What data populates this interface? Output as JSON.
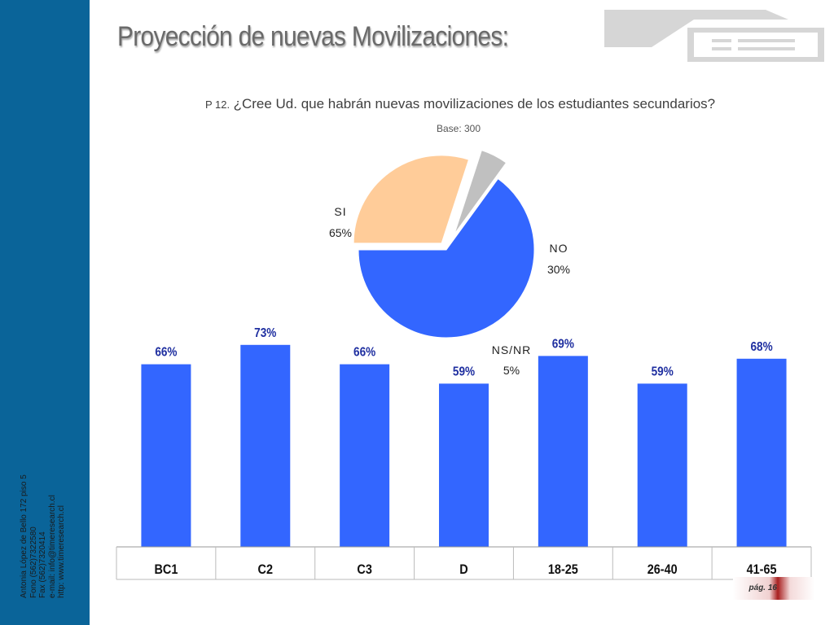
{
  "header": {
    "title": "Proyección de nuevas Movilizaciones:",
    "question_number": "P 12.",
    "question_text": "¿Cree Ud. que habrán nuevas movilizaciones de los estudiantes secundarios?",
    "base": "Base: 300"
  },
  "sidebar": {
    "contact_lines": [
      "Antonia López de Bello 172 piso 5",
      "Fono (562)7322580",
      "Fax (562)7320414",
      "e-mail: info@timeresearch.cl",
      "http: www.timeresearch.cl"
    ]
  },
  "footer": {
    "page": "pág. 16"
  },
  "colors": {
    "sidebar": "#0a6499",
    "bar": "#3366ff",
    "bar_label": "#1f2fa0",
    "pie_si": "#3366ff",
    "pie_no": "#ffcc99",
    "pie_nsnr": "#c0c0c0"
  },
  "chart_data": [
    {
      "type": "pie",
      "labels": [
        "SI",
        "NO",
        "NS/NR"
      ],
      "values": [
        65,
        30,
        5
      ],
      "value_labels": [
        "65%",
        "30%",
        "5%"
      ],
      "colors": [
        "#3366ff",
        "#ffcc99",
        "#c0c0c0"
      ],
      "exploded": true
    },
    {
      "type": "bar",
      "categories": [
        "BC1",
        "C2",
        "C3",
        "D",
        "18-25",
        "26-40",
        "41-65"
      ],
      "values": [
        66,
        73,
        66,
        59,
        69,
        59,
        68
      ],
      "value_labels": [
        "66%",
        "73%",
        "66%",
        "59%",
        "69%",
        "59%",
        "68%"
      ],
      "ylim": [
        0,
        80
      ],
      "grid": false
    }
  ]
}
